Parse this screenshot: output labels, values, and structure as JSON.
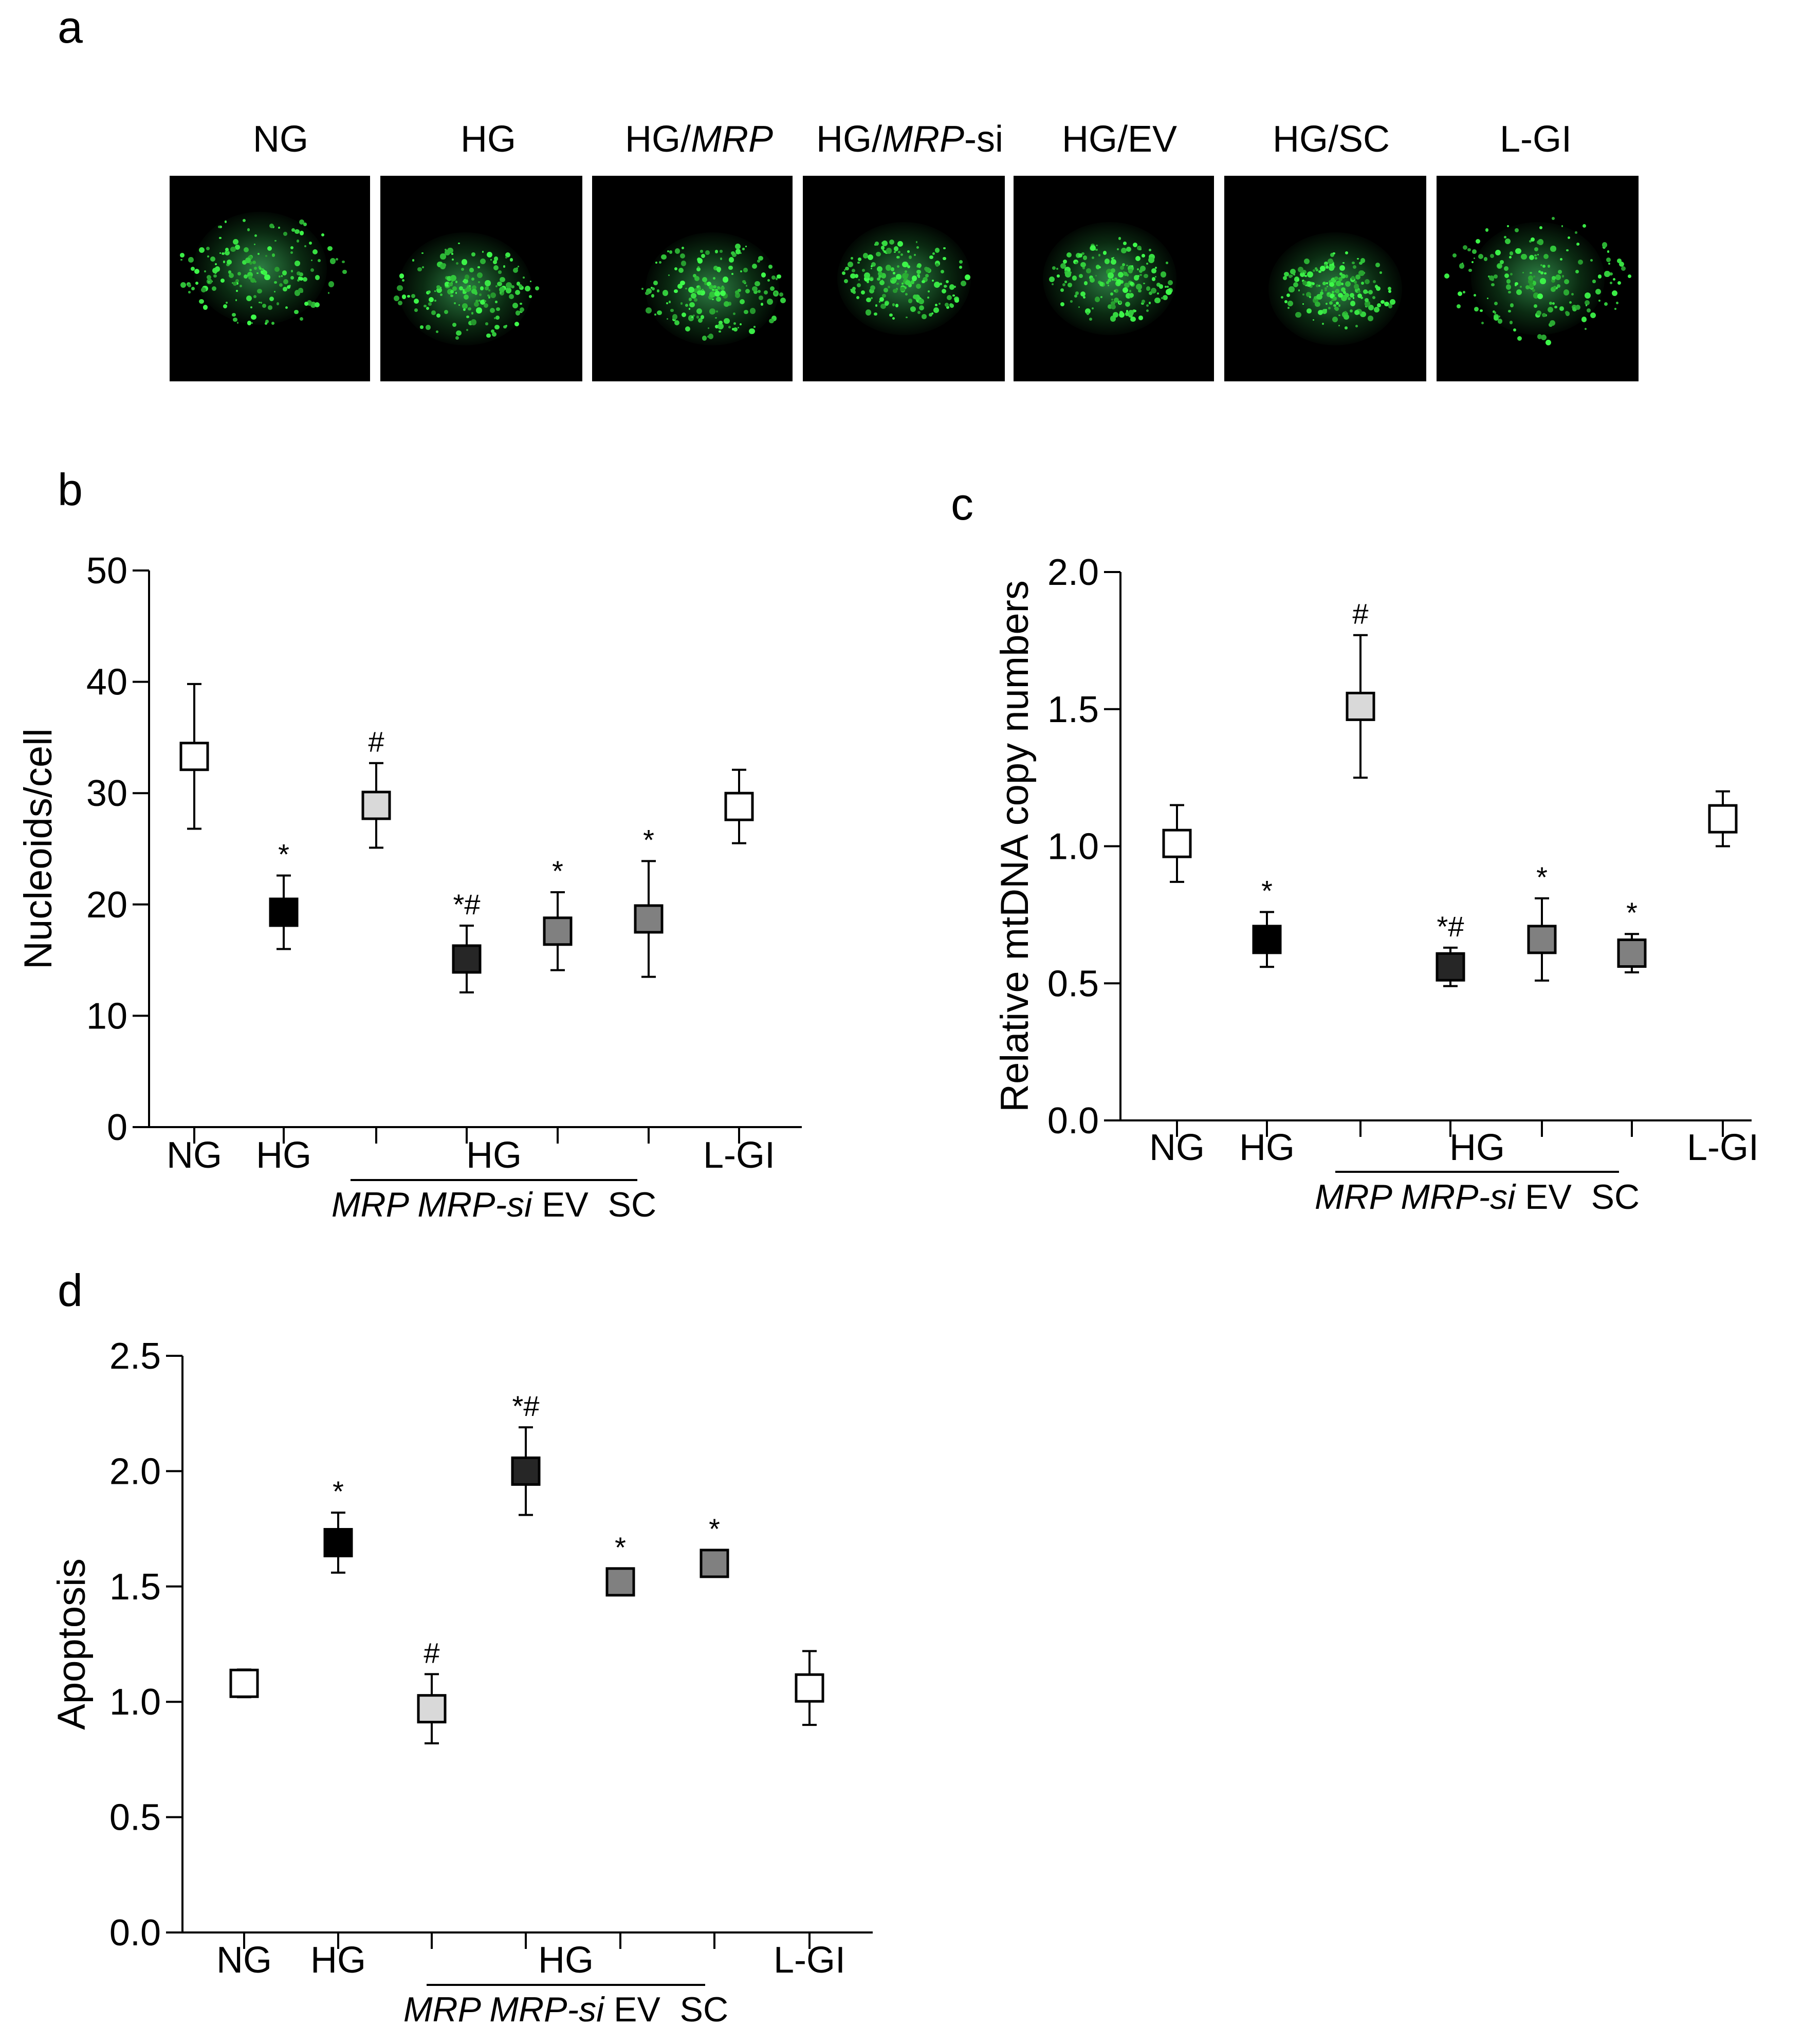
{
  "panels": {
    "a": {
      "letter": "a",
      "images": [
        {
          "label": "NG"
        },
        {
          "label": "HG"
        },
        {
          "label_pre": "HG/",
          "label_it": "MRP",
          "label_post": ""
        },
        {
          "label_pre": "HG/",
          "label_it": "MRP",
          "label_post": "-si"
        },
        {
          "label": "HG/EV"
        },
        {
          "label": "HG/SC"
        },
        {
          "label": "L-GI"
        }
      ]
    }
  },
  "chart_data": [
    {
      "id": "b",
      "letter": "b",
      "type": "scatter",
      "ylabel": "Nucleoids/cell",
      "ylim": [
        0,
        50
      ],
      "yticks": [
        "0",
        "10",
        "20",
        "30",
        "40",
        "50"
      ],
      "categories": [
        "NG",
        "HG",
        "HG/MRP",
        "HG/MRP-si",
        "HG/EV",
        "HG/SC",
        "L-GI"
      ],
      "values": [
        33.3,
        19.3,
        28.9,
        15.1,
        17.6,
        18.7,
        28.8
      ],
      "errors": [
        6.5,
        3.3,
        3.8,
        3.0,
        3.5,
        5.2,
        3.3
      ],
      "annotations": [
        "",
        "*",
        "#",
        "*#",
        "*",
        "*",
        ""
      ],
      "fills": [
        "#ffffff",
        "#000000",
        "#d9d9d9",
        "#262626",
        "#808080",
        "#808080",
        "#ffffff"
      ],
      "xgroup": {
        "left": "NG",
        "mid": "HG",
        "right": "L-GI",
        "sub": [
          {
            "text": "MRP",
            "italic": true
          },
          {
            "text": "MRP-si",
            "italic": true
          },
          {
            "text": "EV",
            "italic": false
          },
          {
            "text": "SC",
            "italic": false
          }
        ]
      }
    },
    {
      "id": "c",
      "letter": "c",
      "type": "scatter",
      "ylabel": "Relative mtDNA copy numbers",
      "ylim": [
        0,
        2
      ],
      "yticks": [
        "0.0",
        "0.5",
        "1.0",
        "1.5",
        "2.0"
      ],
      "categories": [
        "NG",
        "HG",
        "HG/MRP",
        "HG/MRP-si",
        "HG/EV",
        "HG/SC",
        "L-GI"
      ],
      "values": [
        1.01,
        0.66,
        1.51,
        0.56,
        0.66,
        0.61,
        1.1
      ],
      "errors": [
        0.14,
        0.1,
        0.26,
        0.07,
        0.15,
        0.07,
        0.1
      ],
      "annotations": [
        "",
        "*",
        "#",
        "*#",
        "*",
        "*",
        ""
      ],
      "fills": [
        "#ffffff",
        "#000000",
        "#d9d9d9",
        "#262626",
        "#808080",
        "#808080",
        "#ffffff"
      ],
      "xgroup": {
        "left": "NG",
        "mid": "HG",
        "right": "L-GI",
        "sub": [
          {
            "text": "MRP",
            "italic": true
          },
          {
            "text": "MRP-si",
            "italic": true
          },
          {
            "text": "EV",
            "italic": false
          },
          {
            "text": "SC",
            "italic": false
          }
        ]
      }
    },
    {
      "id": "d",
      "letter": "d",
      "type": "scatter",
      "ylabel": "Apoptosis",
      "ylim": [
        0,
        2.5
      ],
      "yticks": [
        "0.0",
        "0.5",
        "1.0",
        "1.5",
        "2.0",
        "2.5"
      ],
      "categories": [
        "NG",
        "HG",
        "HG/MRP",
        "HG/MRP-si",
        "HG/EV",
        "HG/SC",
        "L-GI"
      ],
      "values": [
        1.08,
        1.69,
        0.97,
        2.0,
        1.52,
        1.6,
        1.06
      ],
      "errors": [
        0.06,
        0.13,
        0.15,
        0.19,
        0.03,
        0.03,
        0.16
      ],
      "annotations": [
        "",
        "*",
        "#",
        "*#",
        "*",
        "*",
        ""
      ],
      "fills": [
        "#ffffff",
        "#000000",
        "#d9d9d9",
        "#262626",
        "#808080",
        "#808080",
        "#ffffff"
      ],
      "xgroup": {
        "left": "NG",
        "mid": "HG",
        "right": "L-GI",
        "sub": [
          {
            "text": "MRP",
            "italic": true
          },
          {
            "text": "MRP-si",
            "italic": true
          },
          {
            "text": "EV",
            "italic": false
          },
          {
            "text": "SC",
            "italic": false
          }
        ]
      }
    }
  ]
}
